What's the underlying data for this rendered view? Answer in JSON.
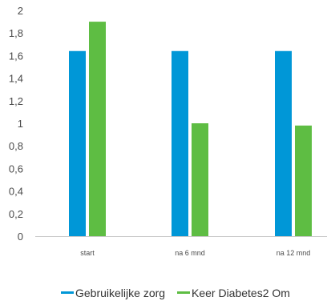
{
  "chart_data": {
    "type": "bar",
    "title": "",
    "xlabel": "",
    "ylabel": "",
    "categories": [
      "start",
      "na 6 mnd",
      "na 12 mnd"
    ],
    "ylim": [
      0,
      2
    ],
    "yticks": [
      "0",
      "0,2",
      "0,4",
      "0,6",
      "0,8",
      "1",
      "1,2",
      "1,4",
      "1,6",
      "1,8",
      "2"
    ],
    "grid": false,
    "legend_position": "bottom",
    "series": [
      {
        "name": "Gebruikelijke zorg",
        "color": "#0097d7",
        "values": [
          1.64,
          1.64,
          1.64
        ]
      },
      {
        "name": "Keer Diabetes2 Om",
        "color": "#5ebd43",
        "values": [
          1.9,
          1.0,
          0.98
        ]
      }
    ]
  }
}
